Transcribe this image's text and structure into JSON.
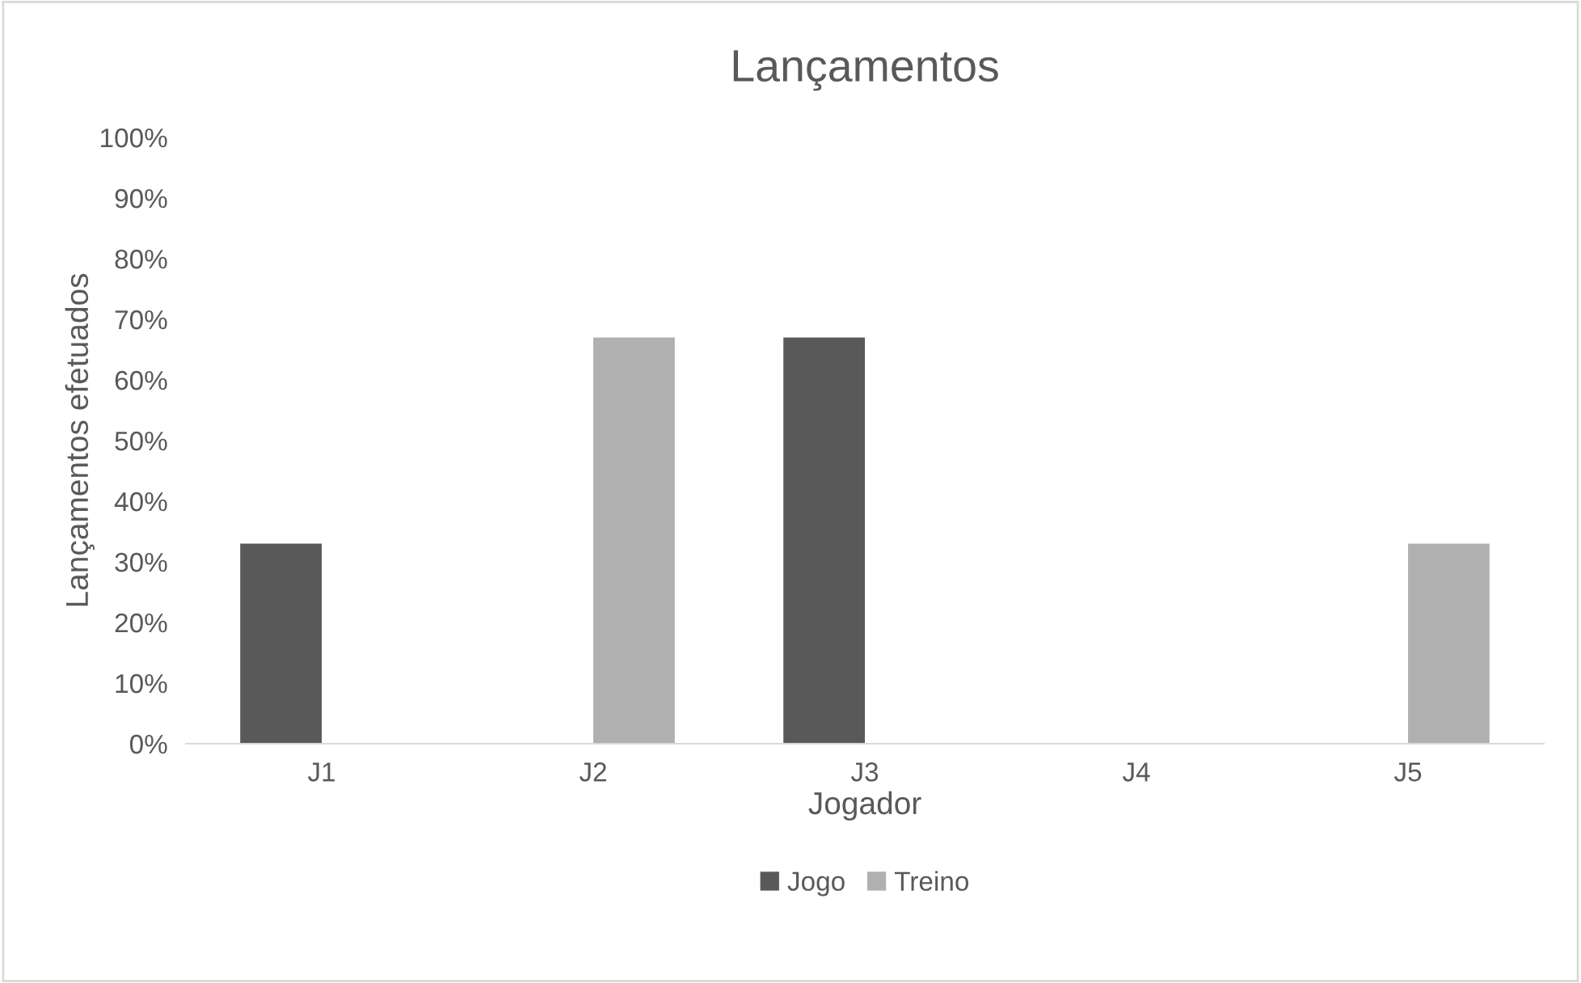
{
  "chart_data": {
    "type": "bar",
    "title": "Lançamentos",
    "xlabel": "Jogador",
    "ylabel": "Lançamentos efetuados",
    "categories": [
      "J1",
      "J2",
      "J3",
      "J4",
      "J5"
    ],
    "series": [
      {
        "name": "Jogo",
        "color": "#595959",
        "values": [
          33,
          0,
          67,
          0,
          0
        ]
      },
      {
        "name": "Treino",
        "color": "#b0b0b0",
        "values": [
          0,
          67,
          0,
          0,
          33
        ]
      }
    ],
    "ylim": [
      0,
      100
    ],
    "yticks": [
      {
        "value": 0,
        "label": "0%"
      },
      {
        "value": 10,
        "label": "10%"
      },
      {
        "value": 20,
        "label": "20%"
      },
      {
        "value": 30,
        "label": "30%"
      },
      {
        "value": 40,
        "label": "40%"
      },
      {
        "value": 50,
        "label": "50%"
      },
      {
        "value": 60,
        "label": "60%"
      },
      {
        "value": 70,
        "label": "70%"
      },
      {
        "value": 80,
        "label": "80%"
      },
      {
        "value": 90,
        "label": "90%"
      },
      {
        "value": 100,
        "label": "100%"
      }
    ],
    "grid": false,
    "legend": "bottom"
  }
}
